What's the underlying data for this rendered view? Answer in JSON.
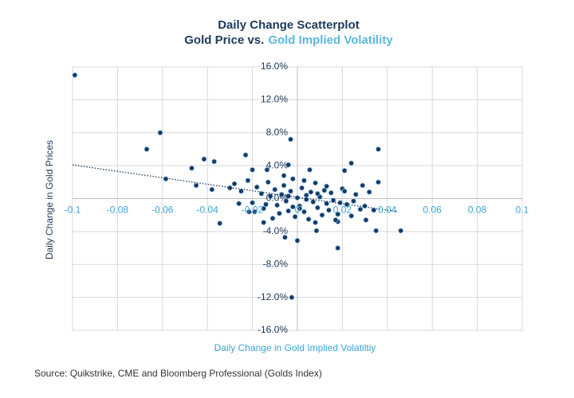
{
  "chart_data": {
    "type": "scatter",
    "title": "Daily Change Scatterplot",
    "subtitle": {
      "text": "Gold Price vs.",
      "highlight": "Gold Implied Volatility"
    },
    "x_label": "Daily Change in Gold Implied Volatiltiy",
    "y_label": "Daily Change in Gold Prices",
    "source": "Source: Quikstrike, CME and Bloomberg Professional (Golds Index)",
    "color": "#123a66",
    "grid": true,
    "xlim": [
      -0.1,
      0.1
    ],
    "xticks": [
      -0.1,
      -0.08,
      -0.06,
      -0.04,
      -0.02,
      0,
      0.02,
      0.04,
      0.06,
      0.08,
      0.1
    ],
    "ylim": [
      -16,
      16
    ],
    "yticks": [
      {
        "value": -16,
        "label": "-16.0%"
      },
      {
        "value": -12,
        "label": "-12.0%"
      },
      {
        "value": -8,
        "label": "-8.0%"
      },
      {
        "value": -4,
        "label": "-4.0%"
      },
      {
        "value": 0,
        "label": "0.0%"
      },
      {
        "value": 4,
        "label": "4.0%"
      },
      {
        "value": 8,
        "label": "8.0%"
      },
      {
        "value": 12,
        "label": "12.0%"
      },
      {
        "value": 16,
        "label": "16.0%"
      }
    ],
    "trendline": {
      "x": [
        -0.1,
        0.045
      ],
      "y": [
        4.1,
        -1.6
      ]
    },
    "x": [
      -0.099,
      -0.061,
      -0.067,
      -0.0585,
      -0.047,
      -0.045,
      -0.0415,
      -0.037,
      -0.0345,
      -0.023,
      -0.003,
      -0.0025,
      0,
      -0.0055,
      0.018,
      0.036,
      0.024,
      0.021,
      0.036,
      0.046,
      0.035,
      0.034,
      0.0305,
      0.0085,
      0.018,
      -0.015,
      -0.0215,
      -0.03,
      -0.038,
      -0.02,
      -0.0135,
      0.0055,
      -0.004,
      0.029,
      0.032,
      -0.028,
      -0.025,
      -0.022,
      -0.02,
      -0.018,
      -0.016,
      -0.015,
      -0.013,
      -0.012,
      -0.01,
      -0.009,
      -0.008,
      -0.007,
      -0.006,
      -0.005,
      -0.004,
      -0.003,
      -0.002,
      -0.001,
      0,
      0.001,
      0.002,
      0.003,
      0.004,
      0.005,
      0.006,
      0.007,
      0.008,
      0.009,
      0.01,
      0.011,
      0.012,
      0.013,
      0.014,
      0.015,
      0.016,
      0.018,
      0.02,
      0.022,
      0.024,
      0.026,
      0.028,
      0.03,
      -0.026,
      -0.019,
      -0.011,
      -0.006,
      -0.002,
      0.003,
      0.008,
      0.013,
      0.017,
      0.021,
      0.025,
      0.004,
      -0.004,
      0.009,
      -0.014,
      0.019,
      0.001
    ],
    "values": [
      15.0,
      8.0,
      6.0,
      2.4,
      3.7,
      1.6,
      4.8,
      4.5,
      -3.0,
      5.3,
      7.2,
      -12.0,
      -5.1,
      -4.7,
      -6.0,
      6.0,
      4.3,
      3.4,
      2.0,
      -3.9,
      -3.9,
      -1.4,
      -2.6,
      -3.9,
      -2.8,
      -2.9,
      -1.6,
      1.3,
      1.1,
      3.5,
      3.5,
      3.5,
      4.1,
      1.6,
      0.8,
      1.8,
      0.9,
      2.2,
      -0.5,
      1.4,
      0.6,
      -1.2,
      2.0,
      0.3,
      1.1,
      -0.8,
      -1.8,
      0.5,
      1.6,
      -0.3,
      -1.5,
      0.9,
      2.4,
      -2.2,
      0.1,
      -0.9,
      1.3,
      -1.6,
      0.4,
      -2.5,
      0.8,
      -0.4,
      1.9,
      -1.1,
      0.2,
      -2.0,
      1.0,
      -0.6,
      -1.4,
      0.7,
      -0.2,
      -1.9,
      1.2,
      -0.7,
      -2.1,
      0.5,
      -1.3,
      -0.9,
      -0.6,
      -1.6,
      -2.4,
      2.8,
      -1.0,
      2.2,
      -2.9,
      1.5,
      -2.6,
      0.9,
      -0.3,
      -0.1,
      0.3,
      0.6,
      -0.7,
      -0.5,
      -1.2
    ]
  }
}
